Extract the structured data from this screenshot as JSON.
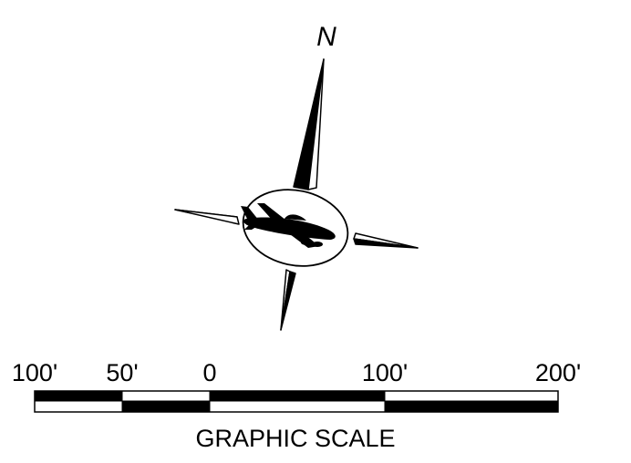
{
  "north_arrow": {
    "north_label": "N",
    "emblem_icon": "airplane-icon"
  },
  "scale_bar": {
    "tick_labels": [
      "100'",
      "50'",
      "0",
      "100'",
      "200'"
    ],
    "title": "GRAPHIC SCALE"
  },
  "colors": {
    "ink": "#000000",
    "paper": "#ffffff"
  }
}
